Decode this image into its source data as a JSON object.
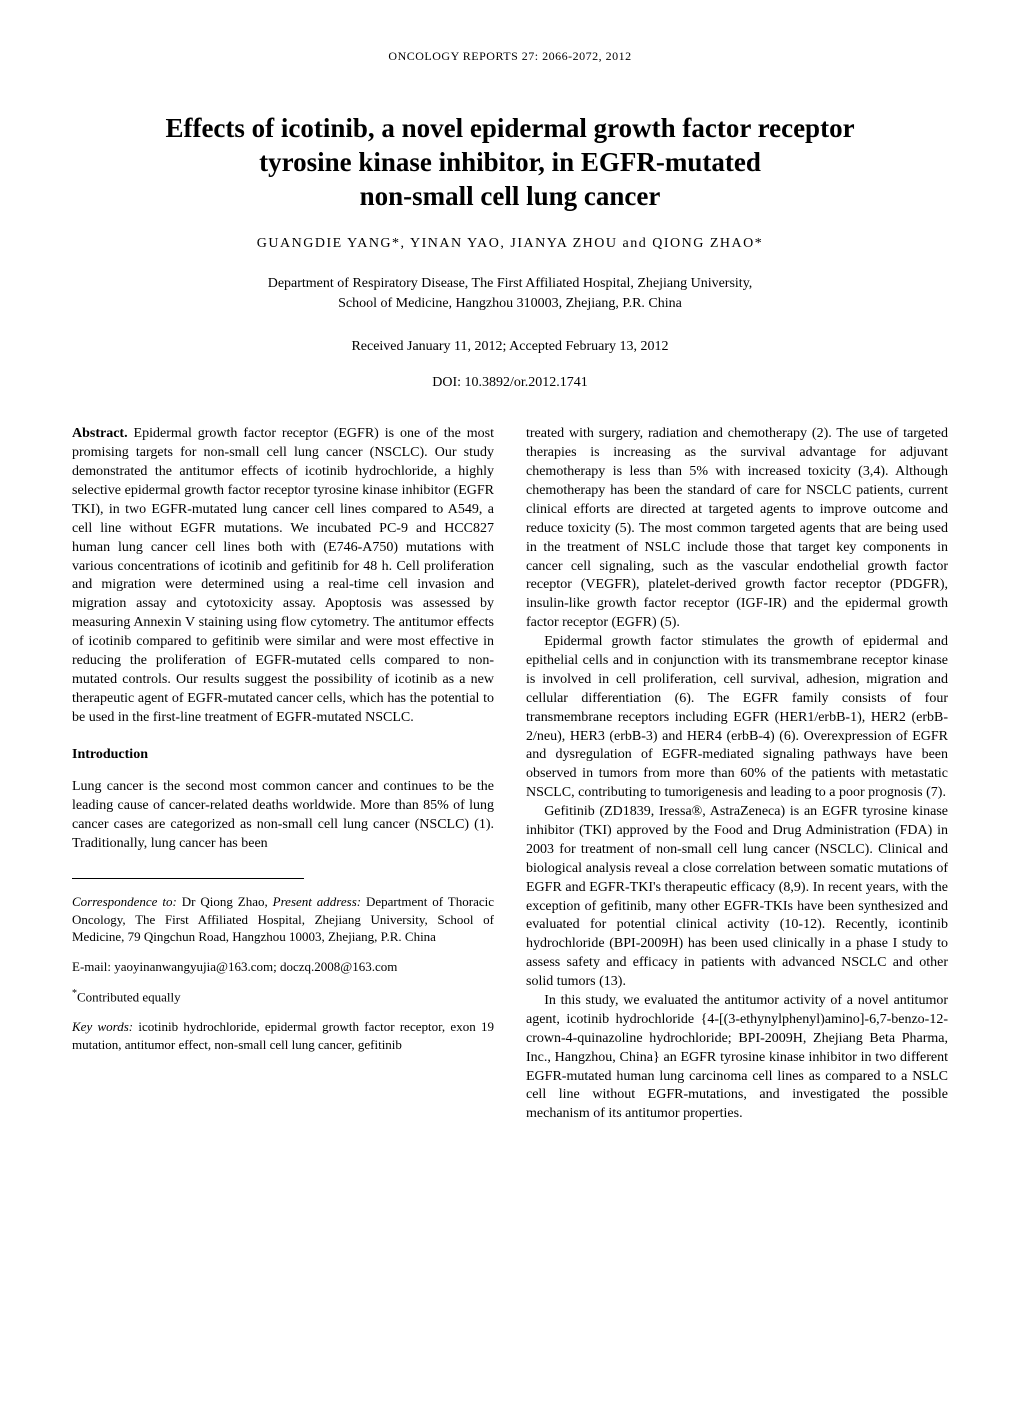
{
  "journal_header": "ONCOLOGY REPORTS  27: 2066-2072,  2012",
  "title_line1": "Effects of icotinib, a novel epidermal growth factor receptor",
  "title_line2": "tyrosine kinase inhibitor, in EGFR-mutated",
  "title_line3": "non-small cell lung cancer",
  "authors": "GUANGDIE YANG*,  YINAN YAO,  JIANYA ZHOU  and  QIONG ZHAO*",
  "affiliation_line1": "Department of Respiratory Disease, The First Affiliated Hospital, Zhejiang University,",
  "affiliation_line2": "School of Medicine, Hangzhou 310003, Zhejiang, P.R. China",
  "received_accepted": "Received January 11, 2012;  Accepted February 13, 2012",
  "doi": "DOI: 10.3892/or.2012.1741",
  "abstract_label": "Abstract.",
  "abstract_text": " Epidermal growth factor receptor (EGFR) is one of the most promising targets for non-small cell lung cancer (NSCLC). Our study demonstrated the antitumor effects of icotinib hydrochloride, a highly selective epidermal growth factor receptor tyrosine kinase inhibitor (EGFR TKI), in two EGFR-mutated lung cancer cell lines compared to A549, a cell line without EGFR mutations. We incubated PC-9 and HCC827 human lung cancer cell lines both with (E746-A750) mutations with various concentrations of icotinib and gefitinib for 48 h. Cell proliferation and migration were determined using a real-time cell invasion and migration assay and cytotoxicity assay. Apoptosis was assessed by measuring Annexin V staining using flow cytometry. The antitumor effects of icotinib compared to gefitinib were similar and were most effective in reducing the proliferation of EGFR-mutated cells compared to non-mutated controls. Our results suggest the possibility of icotinib as a new therapeutic agent of EGFR-mutated cancer cells, which has the potential to be used in the first-line treatment of EGFR-mutated NSCLC.",
  "intro_heading": "Introduction",
  "intro_p1": "Lung cancer is the second most common cancer and continues to be the leading cause of cancer-related deaths worldwide. More than 85% of lung cancer cases are categorized as non-small cell lung cancer (NSCLC) (1). Traditionally, lung cancer has been",
  "intro_p1_cont": "treated with surgery, radiation and chemotherapy (2). The use of targeted therapies is increasing as the survival advantage for adjuvant chemotherapy is less than 5% with increased toxicity (3,4). Although chemotherapy has been the standard of care for NSCLC patients, current clinical efforts are directed at targeted agents to improve outcome and reduce toxicity (5). The most common targeted agents that are being used in the treatment of NSLC include those that target key components in cancer cell signaling, such as the vascular endothelial growth factor receptor (VEGFR), platelet-derived growth factor receptor (PDGFR), insulin-like growth factor receptor (IGF-IR) and the epidermal growth factor receptor (EGFR) (5).",
  "intro_p2": "Epidermal growth factor stimulates the growth of epidermal and epithelial cells and in conjunction with its transmembrane receptor kinase is involved in cell proliferation, cell survival, adhesion, migration and cellular differentiation (6). The EGFR family consists of four transmembrane receptors including EGFR (HER1/erbB-1), HER2 (erbB-2/neu), HER3 (erbB-3) and HER4 (erbB-4) (6). Overexpression of EGFR and dysregulation of EGFR-mediated signaling pathways have been observed in tumors from more than 60% of the patients with metastatic NSCLC, contributing to tumorigenesis and leading to a poor prognosis (7).",
  "intro_p3": "Gefitinib (ZD1839, Iressa®, AstraZeneca) is an EGFR tyrosine kinase inhibitor (TKI) approved by the Food and Drug Administration (FDA) in 2003 for treatment of non-small cell lung cancer (NSCLC). Clinical and biological analysis reveal a close correlation between somatic mutations of EGFR and EGFR-TKI's therapeutic efficacy (8,9). In recent years, with the exception of gefitinib, many other EGFR-TKIs have been synthesized and evaluated for potential clinical activity (10-12). Recently, icontinib hydrochloride (BPI-2009H) has been used clinically in a phase I study to assess safety and efficacy in patients with advanced NSCLC and other solid tumors (13).",
  "intro_p4": "In this study, we evaluated the antitumor activity of a novel antitumor agent, icotinib hydrochloride {4-[(3-ethynylphenyl)amino]-6,7-benzo-12-crown-4-quinazoline hydrochloride; BPI-2009H, Zhejiang Beta Pharma, Inc., Hangzhou, China} an EGFR tyrosine kinase inhibitor in two different EGFR-mutated human lung carcinoma cell lines as compared to a NSLC cell line without EGFR-mutations, and investigated the possible mechanism of its antitumor properties.",
  "correspondence_label": "Correspondence to:",
  "correspondence_text": " Dr Qiong Zhao, ",
  "present_address_label": "Present address:",
  "correspondence_body": " Department of Thoracic Oncology, The First Affiliated Hospital, Zhejiang University, School of Medicine, 79 Qingchun Road, Hangzhou 10003, Zhejiang, P.R. China",
  "email": "E-mail: yaoyinanwangyujia@163.com; doczq.2008@163.com",
  "contributed": "*Contributed equally",
  "keywords_label": "Key words:",
  "keywords_text": " icotinib hydrochloride, epidermal growth factor receptor, exon 19 mutation, antitumor effect, non-small cell lung cancer, gefitinib"
}
